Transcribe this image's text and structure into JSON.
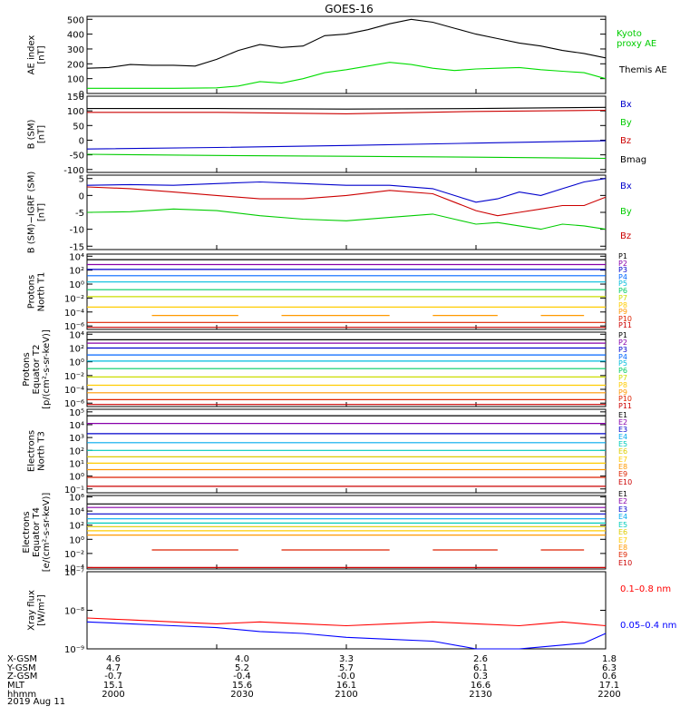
{
  "title": "GOES-16",
  "date": "2019 Aug 11",
  "chart_data": [
    {
      "type": "line",
      "panel": "ae",
      "ylabel": [
        "AE index",
        "[nT]"
      ],
      "ylim": [
        0,
        520
      ],
      "ticks": [
        0,
        100,
        200,
        300,
        400,
        500
      ],
      "tick_labels": [
        "0",
        "100",
        "200",
        "300",
        "400",
        "500"
      ],
      "series": [
        {
          "name": "Kyoto proxy AE",
          "label_lines": [
            "Kyoto",
            "proxy AE"
          ],
          "color": "#00cc00",
          "x": [
            0,
            30,
            55,
            75,
            90,
            105,
            120
          ],
          "y": [
            95,
            95,
            92,
            115,
            110,
            95,
            100
          ],
          "draw": "none"
        },
        {
          "name": "Themis AE",
          "label_lines": [
            "Themis AE"
          ],
          "color": "#000000",
          "x": [
            0,
            5,
            10,
            15,
            20,
            25,
            30,
            35,
            40,
            45,
            50,
            55,
            60,
            65,
            70,
            75,
            80,
            85,
            90,
            95,
            100,
            105,
            110,
            115,
            120
          ],
          "y": [
            170,
            175,
            195,
            190,
            190,
            185,
            230,
            290,
            330,
            310,
            320,
            390,
            400,
            430,
            470,
            500,
            480,
            440,
            400,
            370,
            340,
            320,
            290,
            270,
            240
          ]
        },
        {
          "name": "",
          "label_lines": [],
          "color": "#00dd00",
          "x": [
            0,
            10,
            20,
            30,
            35,
            40,
            45,
            50,
            55,
            60,
            65,
            70,
            75,
            80,
            85,
            90,
            95,
            100,
            105,
            110,
            115,
            120
          ],
          "y": [
            35,
            35,
            35,
            38,
            50,
            80,
            70,
            100,
            140,
            160,
            185,
            210,
            195,
            170,
            155,
            165,
            170,
            175,
            160,
            150,
            140,
            100
          ]
        }
      ]
    },
    {
      "type": "line",
      "panel": "bsm",
      "ylabel": [
        "B (SM)",
        "[nT]"
      ],
      "ylim": [
        -110,
        150
      ],
      "ticks": [
        -100,
        -50,
        0,
        50,
        100,
        150
      ],
      "tick_labels": [
        "-100",
        "-50",
        "0",
        "50",
        "100",
        "150"
      ],
      "series": [
        {
          "name": "Bx",
          "color": "#0000cc",
          "x": [
            0,
            30,
            60,
            90,
            120
          ],
          "y": [
            -30,
            -25,
            -18,
            -10,
            -2
          ]
        },
        {
          "name": "By",
          "color": "#00cc00",
          "x": [
            0,
            30,
            60,
            90,
            120
          ],
          "y": [
            -48,
            -52,
            -55,
            -58,
            -62
          ]
        },
        {
          "name": "Bz",
          "color": "#cc0000",
          "x": [
            0,
            30,
            60,
            90,
            120
          ],
          "y": [
            95,
            95,
            90,
            98,
            102
          ]
        },
        {
          "name": "Bmag",
          "color": "#000000",
          "x": [
            0,
            30,
            60,
            90,
            120
          ],
          "y": [
            108,
            108,
            106,
            108,
            112
          ]
        }
      ]
    },
    {
      "type": "line",
      "panel": "bigrf",
      "ylabel": [
        "B (SM)−IGRF (SM)",
        "[nT]"
      ],
      "ylim": [
        -16,
        6
      ],
      "ticks": [
        -15,
        -10,
        -5,
        0,
        5
      ],
      "tick_labels": [
        "-15",
        "-10",
        "-5",
        "0",
        "5"
      ],
      "series": [
        {
          "name": "Bx",
          "color": "#0000cc",
          "x": [
            0,
            10,
            20,
            30,
            40,
            50,
            60,
            70,
            80,
            85,
            90,
            95,
            100,
            105,
            110,
            115,
            120
          ],
          "y": [
            3,
            3.2,
            3,
            3.5,
            4,
            3.5,
            3,
            3,
            2,
            0,
            -2,
            -1,
            1,
            0,
            2,
            4,
            5
          ]
        },
        {
          "name": "By",
          "color": "#00cc00",
          "x": [
            0,
            10,
            20,
            30,
            40,
            50,
            60,
            70,
            80,
            85,
            90,
            95,
            100,
            105,
            110,
            115,
            120
          ],
          "y": [
            -5,
            -4.8,
            -4,
            -4.5,
            -6,
            -7,
            -7.5,
            -6.5,
            -5.5,
            -7,
            -8.5,
            -8,
            -9,
            -10,
            -8.5,
            -9,
            -10
          ]
        },
        {
          "name": "Bz",
          "color": "#cc0000",
          "x": [
            0,
            10,
            20,
            30,
            40,
            50,
            60,
            70,
            80,
            85,
            90,
            95,
            100,
            105,
            110,
            115,
            120
          ],
          "y": [
            2.5,
            2,
            1,
            0,
            -1,
            -1,
            0,
            1.5,
            0.5,
            -2,
            -4.5,
            -6,
            -5,
            -4,
            -3,
            -3,
            -0.5
          ]
        }
      ]
    },
    {
      "type": "line",
      "panel": "pn",
      "ylabel": [
        "Protons",
        "North T1"
      ],
      "log": true,
      "ylim": [
        -6.5,
        4.3
      ],
      "ticks": [
        -6,
        -4,
        -2,
        0,
        2,
        4
      ],
      "tick_labels": [
        "10⁻⁶",
        "10⁻⁴",
        "10⁻²",
        "10⁰",
        "10²",
        "10⁴"
      ],
      "legend": [
        "P1",
        "P2",
        "P3",
        "P4",
        "P5",
        "P6",
        "P7",
        "P8",
        "P9",
        "P10",
        "P11"
      ],
      "series_levels": [
        3.5,
        2.8,
        2.1,
        1.2,
        0.3,
        -0.8,
        -1.8,
        -3.3,
        -4.5,
        -5.5,
        -6.2
      ],
      "gaps": [
        8
      ]
    },
    {
      "type": "line",
      "panel": "pe",
      "ylabel": [
        "Protons",
        "Equator T2",
        "[p/(cm²-s-sr-keV)]"
      ],
      "log": true,
      "ylim": [
        -6.5,
        4.3
      ],
      "ticks": [
        -6,
        -4,
        -2,
        0,
        2,
        4
      ],
      "tick_labels": [
        "10⁻⁶",
        "10⁻⁴",
        "10⁻²",
        "10⁰",
        "10²",
        "10⁴"
      ],
      "legend": [
        "P1",
        "P2",
        "P3",
        "P4",
        "P5",
        "P6",
        "P7",
        "P8",
        "P9",
        "P10",
        "P11"
      ],
      "series_levels": [
        3.2,
        2.7,
        2.0,
        1.0,
        0.1,
        -1.0,
        -2.2,
        -3.4,
        -4.5,
        -5.5,
        -6.2
      ]
    },
    {
      "type": "line",
      "panel": "en",
      "ylabel": [
        "Electrons",
        "North T3"
      ],
      "log": true,
      "ylim": [
        -1.3,
        5.2
      ],
      "ticks": [
        -1,
        0,
        1,
        2,
        3,
        4,
        5
      ],
      "tick_labels": [
        "10⁻¹",
        "10⁰",
        "10¹",
        "10²",
        "10³",
        "10⁴",
        "10⁵"
      ],
      "legend": [
        "E1",
        "E2",
        "E3",
        "E4",
        "E5",
        "E6",
        "E7",
        "E8",
        "E9",
        "E10"
      ],
      "series_levels": [
        4.7,
        4.1,
        3.3,
        2.6,
        2.0,
        1.5,
        1.0,
        0.5,
        -0.1,
        -0.8
      ]
    },
    {
      "type": "line",
      "panel": "ee",
      "ylabel": [
        "Electrons",
        "Equator T4",
        "[e/(cm²-s-sr-keV)]"
      ],
      "log": true,
      "ylim": [
        -4.2,
        6.2
      ],
      "ticks": [
        -4,
        -2,
        0,
        2,
        4,
        6
      ],
      "tick_labels": [
        "10⁻⁴",
        "10⁻²",
        "10⁰",
        "10²",
        "10⁴",
        "10⁶"
      ],
      "legend": [
        "E1",
        "E2",
        "E3",
        "E4",
        "E5",
        "E6",
        "E7",
        "E8",
        "E9",
        "E10"
      ],
      "series_levels": [
        5.0,
        4.5,
        3.6,
        2.9,
        2.3,
        1.8,
        1.2,
        0.6,
        -1.5,
        -4.0
      ],
      "gaps": [
        8
      ]
    },
    {
      "type": "line",
      "panel": "xray",
      "ylabel": [
        "Xray flux",
        "[W/m²]"
      ],
      "log": true,
      "ylim": [
        -9,
        -7
      ],
      "ticks": [
        -9,
        -8,
        -7
      ],
      "tick_labels": [
        "10⁻⁹",
        "10⁻⁸",
        "10⁻⁷"
      ],
      "series": [
        {
          "name": "0.1–0.8 nm",
          "color": "#ff0000",
          "x": [
            0,
            10,
            20,
            30,
            40,
            50,
            60,
            70,
            80,
            90,
            100,
            105,
            110,
            115,
            120
          ],
          "y": [
            -8.2,
            -8.25,
            -8.3,
            -8.35,
            -8.3,
            -8.35,
            -8.4,
            -8.35,
            -8.3,
            -8.35,
            -8.4,
            -8.35,
            -8.3,
            -8.35,
            -8.4
          ]
        },
        {
          "name": "0.05–0.4 nm",
          "color": "#0000ff",
          "x": [
            0,
            10,
            20,
            30,
            40,
            50,
            60,
            70,
            80,
            90,
            100,
            105,
            110,
            115,
            120
          ],
          "y": [
            -8.3,
            -8.35,
            -8.4,
            -8.45,
            -8.55,
            -8.6,
            -8.7,
            -8.75,
            -8.8,
            -9.0,
            -9.0,
            -8.95,
            -8.9,
            -8.85,
            -8.6
          ]
        }
      ]
    }
  ],
  "orbit": {
    "row_labels": [
      "X-GSM",
      "Y-GSM",
      "Z-GSM",
      "MLT",
      "hhmm"
    ],
    "columns": [
      {
        "values": [
          "4.6",
          "4.7",
          "-0.7",
          "15.1",
          "2000"
        ]
      },
      {
        "values": [
          "4.0",
          "5.2",
          "-0.4",
          "15.6",
          "2030"
        ]
      },
      {
        "values": [
          "3.3",
          "5.7",
          "-0.0",
          "16.1",
          "2100"
        ]
      },
      {
        "values": [
          "2.6",
          "6.1",
          "0.3",
          "16.6",
          "2130"
        ]
      },
      {
        "values": [
          "1.8",
          "6.3",
          "0.6",
          "17.1",
          "2200"
        ]
      }
    ]
  }
}
